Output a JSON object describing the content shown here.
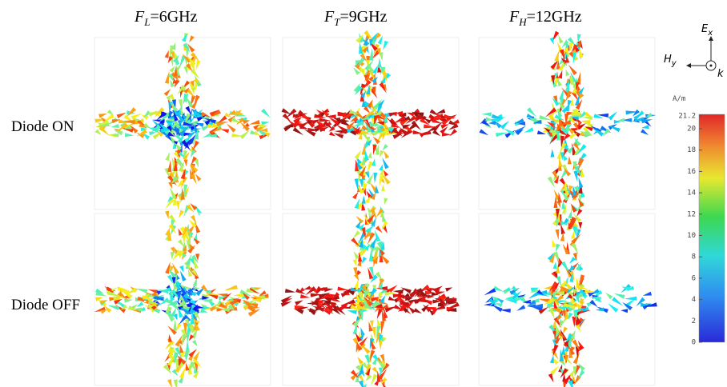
{
  "columns": [
    {
      "symbol": "F",
      "subscript": "L",
      "rest": "=6GHz"
    },
    {
      "symbol": "F",
      "subscript": "T",
      "rest": "=9GHz"
    },
    {
      "symbol": "F",
      "subscript": "H",
      "rest": "=12GHz"
    }
  ],
  "rows": [
    "Diode ON",
    "Diode OFF"
  ],
  "axes_icon": {
    "e": "E",
    "e_sub": "x",
    "h": "H",
    "h_sub": "y",
    "k": "k"
  },
  "colorbar": {
    "unit": "A/m",
    "lim": [
      0,
      21.2
    ],
    "ticks": [
      0,
      2,
      4,
      6,
      8,
      10,
      12,
      14,
      16,
      18,
      20,
      21.2
    ]
  }
}
